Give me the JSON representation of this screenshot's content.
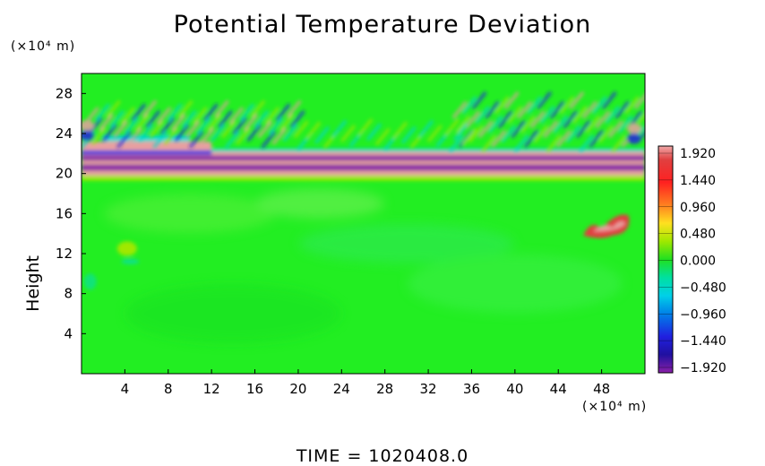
{
  "title": "Potential Temperature Deviation",
  "footer": "TIME = 1020408.0",
  "chart_data": {
    "type": "heatmap",
    "title": "Potential Temperature Deviation",
    "xlabel": "",
    "xunit": "(×10⁴ m)",
    "ylabel": "Height",
    "yunit": "(×10⁴ m)",
    "xlim": [
      0,
      52
    ],
    "ylim": [
      0,
      30
    ],
    "xticks": [
      4,
      8,
      12,
      16,
      20,
      24,
      28,
      32,
      36,
      40,
      44,
      48
    ],
    "yticks": [
      4,
      8,
      12,
      16,
      20,
      24,
      28
    ],
    "colorbar": {
      "ticks": [
        "1.920",
        "1.440",
        "0.960",
        "0.480",
        "0.000",
        "−0.480",
        "−0.960",
        "−1.440",
        "−1.920"
      ],
      "vmin": -1.92,
      "vmax": 1.92
    },
    "background_color": "#22ee22",
    "colors": {
      "strong_pos": "#e8a0a0",
      "strong_neg": "#8a20a8",
      "mid_neg": "#2020e0",
      "weak_neg": "#00d8d0",
      "weak_pos": "#a0e800",
      "warm": "#e04040"
    },
    "features": [
      {
        "name": "main-band",
        "x": [
          0,
          52
        ],
        "y": [
          19.2,
          22.5
        ]
      },
      {
        "name": "upper-wave-left",
        "x": [
          0,
          22
        ],
        "y": [
          22.5,
          26
        ]
      },
      {
        "name": "upper-wave-right",
        "x": [
          36,
          52
        ],
        "y": [
          22,
          27
        ]
      },
      {
        "name": "warm-anomaly",
        "x": [
          46,
          51
        ],
        "y": [
          13.5,
          16
        ]
      },
      {
        "name": "small-anomaly",
        "x": [
          3,
          6
        ],
        "y": [
          11.5,
          13.5
        ]
      }
    ]
  }
}
